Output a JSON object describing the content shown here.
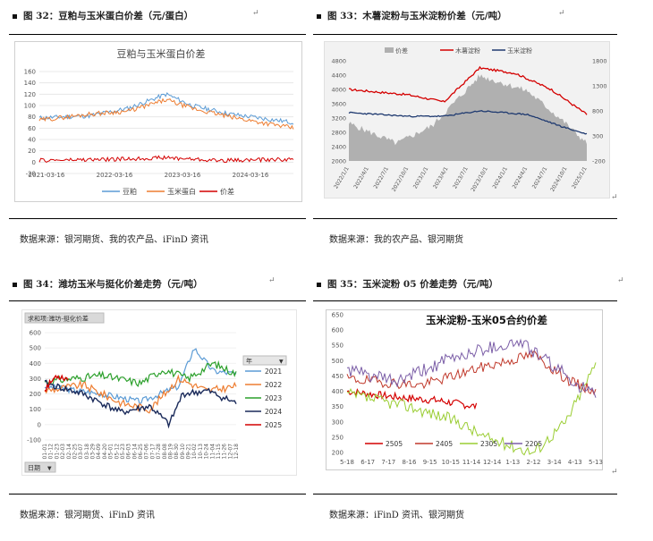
{
  "fig32": {
    "title": "图 32：豆粕与玉米蛋白价差（元/蛋白）",
    "source": "数据来源：银河期货、我的农产品、iFinD 资讯",
    "chart_title": "豆粕与玉米蛋白价差",
    "yticks": [
      "160",
      "140",
      "120",
      "100",
      "80",
      "60",
      "40",
      "20",
      "0",
      "-20"
    ],
    "xticks": [
      "2021-03-16",
      "2022-03-16",
      "2023-03-16",
      "2024-03-16"
    ],
    "legend": [
      "豆粕",
      "玉米蛋白",
      "价差"
    ]
  },
  "fig33": {
    "title": "图 33：木薯淀粉与玉米淀粉价差（元/吨）",
    "source": "数据来源：我的农产品、银河期货",
    "legend": [
      "价差",
      "木薯淀粉",
      "玉米淀粉"
    ],
    "yleft": [
      "4800",
      "4400",
      "4000",
      "3600",
      "3200",
      "2800",
      "2400",
      "2000"
    ],
    "yright": [
      "1800",
      "1300",
      "800",
      "300",
      "-200"
    ],
    "xticks": [
      "2022/1/1",
      "2022/4/1",
      "2022/7/1",
      "2022/10/1",
      "2023/1/1",
      "2023/4/1",
      "2023/7/1",
      "2023/10/1",
      "2024/1/1",
      "2024/4/1",
      "2024/7/1",
      "2024/10/1",
      "2025/1/1"
    ]
  },
  "fig34": {
    "title": "图 34：潍坊玉米与挺化价差走势（元/吨）",
    "source": "数据来源：银河期货、iFinD 资讯",
    "badge": "求和项:潍坊-挺化价差",
    "yticks": [
      "600",
      "500",
      "400",
      "300",
      "200",
      "100",
      "0",
      "-100"
    ],
    "xticks": [
      "01-01",
      "01-12",
      "01-23",
      "02-03",
      "02-14",
      "02-25",
      "03-07",
      "03-18",
      "03-29",
      "04-09",
      "04-20",
      "05-01",
      "05-12",
      "05-23",
      "06-03",
      "06-14",
      "06-25",
      "07-06",
      "07-17",
      "07-28",
      "08-08",
      "08-19",
      "08-30",
      "09-10",
      "09-21",
      "10-02",
      "10-13",
      "10-24",
      "11-04",
      "11-15",
      "11-26",
      "12-07",
      "12-18"
    ],
    "legend_header": "年",
    "legend": [
      "2021",
      "2022",
      "2023",
      "2024",
      "2025"
    ],
    "date_button": "日期"
  },
  "fig35": {
    "title": "图 35：玉米淀粉 05 价差走势（元/吨）",
    "source": "数据来源：iFinD 资讯、银河期货",
    "chart_title": "玉米淀粉-玉米05合约价差",
    "yticks": [
      "650",
      "600",
      "550",
      "500",
      "450",
      "400",
      "350",
      "300",
      "250",
      "200"
    ],
    "xticks": [
      "5-18",
      "6-17",
      "7-17",
      "8-16",
      "9-15",
      "10-15",
      "11-14",
      "12-14",
      "1-13",
      "2-12",
      "3-14",
      "4-13",
      "5-13"
    ],
    "legend": [
      "2505",
      "2405",
      "2305",
      "2205"
    ]
  },
  "colors": {
    "red": "#d40000",
    "gray": "#b0b0b0",
    "navy": "#1f3a70",
    "blue": "#5b9bd5",
    "orange": "#ed7d31",
    "green": "#2ca02c",
    "darknavy": "#1a2a5a",
    "lightgreen": "#9acd32",
    "purple": "#7b5ea7"
  },
  "return_mark": "↵"
}
